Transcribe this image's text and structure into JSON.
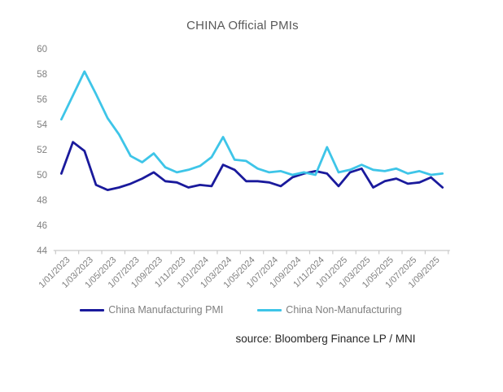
{
  "header": {
    "title": "CHINA Official PMIs"
  },
  "footer": {
    "source_text": "source: Bloomberg Finance LP / MNI"
  },
  "colors": {
    "manufacturing_line": "#1A1A9C",
    "non_manufacturing_line": "#3EC5E8",
    "axis_line": "#C9C9C9",
    "axis_tick_label": "#7F7F7F",
    "title_text": "#595959",
    "legend_text": "#7F7F7F",
    "source_text": "#262626",
    "background": "#FFFFFF"
  },
  "chart_data": {
    "type": "line",
    "title": "CHINA Official PMIs",
    "xlabel": "",
    "ylabel": "",
    "ylim": [
      44,
      60
    ],
    "yticks": [
      60,
      58,
      56,
      54,
      52,
      50,
      48,
      46,
      44
    ],
    "grid": false,
    "legend_position": "bottom",
    "x": [
      "1/01/2023",
      "1/02/2023",
      "1/03/2023",
      "1/04/2023",
      "1/05/2023",
      "1/06/2023",
      "1/07/2023",
      "1/08/2023",
      "1/09/2023",
      "1/10/2023",
      "1/11/2023",
      "1/12/2023",
      "1/01/2024",
      "1/02/2024",
      "1/03/2024",
      "1/04/2024",
      "1/05/2024",
      "1/06/2024",
      "1/07/2024",
      "1/08/2024",
      "1/09/2024",
      "1/10/2024",
      "1/11/2024",
      "1/12/2024",
      "1/01/2025",
      "1/02/2025",
      "1/03/2025",
      "1/04/2025",
      "1/05/2025",
      "1/06/2025",
      "1/07/2025",
      "1/08/2025",
      "1/09/2025",
      "1/10/2025"
    ],
    "x_tick_labels": [
      "1/01/2023",
      "1/03/2023",
      "1/05/2023",
      "1/07/2023",
      "1/09/2023",
      "1/11/2023",
      "1/01/2024",
      "1/03/2024",
      "1/05/2024",
      "1/07/2024",
      "1/09/2024",
      "1/11/2024",
      "1/01/2025",
      "1/03/2025",
      "1/05/2025",
      "1/07/2025",
      "1/09/2025"
    ],
    "series": [
      {
        "name": "China Manufacturing PMI",
        "color": "#1A1A9C",
        "values": [
          50.1,
          52.6,
          51.9,
          49.2,
          48.8,
          49.0,
          49.3,
          49.7,
          50.2,
          49.5,
          49.4,
          49.0,
          49.2,
          49.1,
          50.8,
          50.4,
          49.5,
          49.5,
          49.4,
          49.1,
          49.8,
          50.1,
          50.3,
          50.1,
          49.1,
          50.2,
          50.5,
          49.0,
          49.5,
          49.7,
          49.3,
          49.4,
          49.8,
          49.0
        ]
      },
      {
        "name": "China Non-Manufacturing",
        "color": "#3EC5E8",
        "values": [
          54.4,
          56.3,
          58.2,
          56.4,
          54.5,
          53.2,
          51.5,
          51.0,
          51.7,
          50.6,
          50.2,
          50.4,
          50.7,
          51.4,
          53.0,
          51.2,
          51.1,
          50.5,
          50.2,
          50.3,
          50.0,
          50.2,
          50.0,
          52.2,
          50.2,
          50.4,
          50.8,
          50.4,
          50.3,
          50.5,
          50.1,
          50.3,
          50.0,
          50.1
        ]
      }
    ]
  }
}
